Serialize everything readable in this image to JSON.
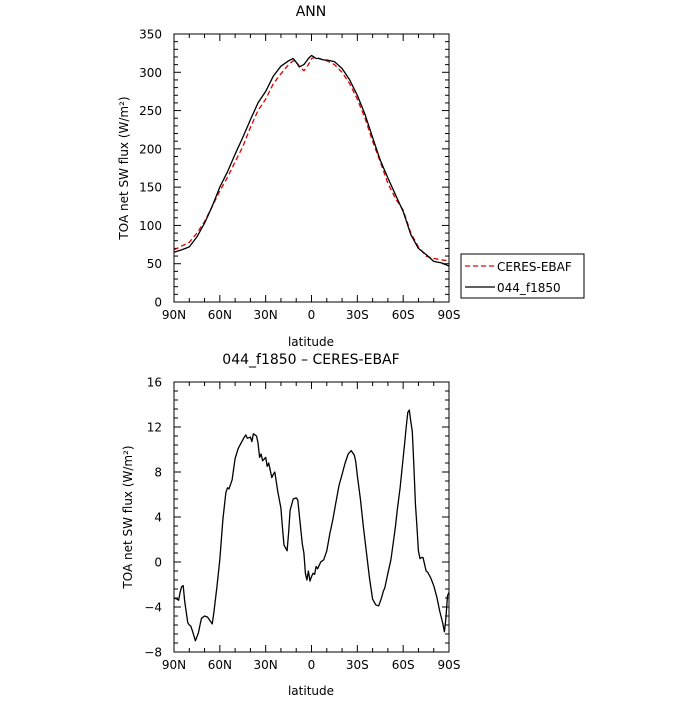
{
  "chart_data": [
    {
      "type": "line",
      "title": "ANN",
      "xlabel": "latitude",
      "ylabel": "TOA net SW flux (W/m²)",
      "xlim": [
        -90,
        90
      ],
      "ylim": [
        0,
        350
      ],
      "xticks": [
        -90,
        -60,
        -30,
        0,
        30,
        60,
        90
      ],
      "xtick_labels": [
        "90N",
        "60N",
        "30N",
        "0",
        "30S",
        "60S",
        "90S"
      ],
      "yticks": [
        0,
        50,
        100,
        150,
        200,
        250,
        300,
        350
      ],
      "ytick_labels": [
        "0",
        "50",
        "100",
        "150",
        "200",
        "250",
        "300",
        "350"
      ],
      "legend": "right",
      "series": [
        {
          "name": "CERES-EBAF",
          "color": "#e00000",
          "dash": "dashed",
          "x": [
            -90,
            -85,
            -80,
            -75,
            -70,
            -65,
            -60,
            -55,
            -50,
            -45,
            -40,
            -35,
            -30,
            -25,
            -20,
            -15,
            -12,
            -10,
            -8,
            -5,
            -2,
            0,
            3,
            5,
            8,
            10,
            15,
            20,
            25,
            30,
            35,
            40,
            45,
            50,
            55,
            60,
            65,
            70,
            75,
            80,
            85,
            90
          ],
          "y": [
            68,
            73,
            78,
            90,
            105,
            125,
            145,
            163,
            183,
            203,
            228,
            250,
            265,
            285,
            298,
            310,
            315,
            314,
            308,
            302,
            310,
            318,
            320,
            318,
            316,
            315,
            310,
            300,
            285,
            265,
            240,
            210,
            183,
            155,
            135,
            120,
            90,
            72,
            60,
            57,
            55,
            54
          ]
        },
        {
          "name": "044_f1850",
          "color": "#000000",
          "dash": "solid",
          "x": [
            -90,
            -85,
            -80,
            -75,
            -70,
            -65,
            -60,
            -55,
            -50,
            -45,
            -40,
            -35,
            -30,
            -25,
            -20,
            -15,
            -12,
            -10,
            -8,
            -5,
            -2,
            0,
            3,
            5,
            8,
            10,
            15,
            20,
            25,
            30,
            35,
            40,
            45,
            50,
            55,
            60,
            65,
            70,
            75,
            80,
            85,
            90
          ],
          "y": [
            65,
            68,
            72,
            85,
            103,
            125,
            150,
            170,
            193,
            215,
            238,
            260,
            275,
            295,
            308,
            315,
            318,
            313,
            307,
            310,
            318,
            322,
            318,
            318,
            316,
            316,
            314,
            305,
            290,
            270,
            245,
            215,
            185,
            162,
            140,
            118,
            88,
            70,
            62,
            53,
            51,
            47
          ]
        }
      ]
    },
    {
      "type": "line",
      "title": "044_f1850 – CERES-EBAF",
      "xlabel": "latitude",
      "ylabel": "TOA net SW flux (W/m²)",
      "xlim": [
        -90,
        90
      ],
      "ylim": [
        -8,
        16
      ],
      "xticks": [
        -90,
        -60,
        -30,
        0,
        30,
        60,
        90
      ],
      "xtick_labels": [
        "90N",
        "60N",
        "30N",
        "0",
        "30S",
        "60S",
        "90S"
      ],
      "yticks": [
        -8,
        -4,
        0,
        4,
        8,
        12,
        16
      ],
      "ytick_labels": [
        "−8",
        "−4",
        "0",
        "4",
        "8",
        "12",
        "16"
      ],
      "series": [
        {
          "color": "#000000",
          "dash": "solid",
          "x": [
            -90,
            -88,
            -87,
            -86,
            -85,
            -84,
            -83,
            -81,
            -80,
            -79,
            -78,
            -76,
            -74,
            -73,
            -72,
            -70,
            -68,
            -67,
            -65,
            -64,
            -62,
            -60,
            -58,
            -56,
            -55,
            -54,
            -52,
            -50,
            -48,
            -46,
            -44,
            -43,
            -42,
            -40,
            -39,
            -38,
            -36,
            -35,
            -34,
            -33,
            -32,
            -30,
            -29,
            -28,
            -26,
            -25,
            -24,
            -22,
            -20,
            -19,
            -18,
            -16,
            -15,
            -14,
            -12,
            -10,
            -9,
            -8,
            -6,
            -5,
            -4,
            -3,
            -2,
            -1,
            0,
            1,
            2,
            3,
            4,
            6,
            8,
            10,
            12,
            14,
            16,
            18,
            20,
            22,
            24,
            26,
            28,
            29,
            30,
            32,
            34,
            36,
            38,
            40,
            42,
            44,
            46,
            47,
            48,
            50,
            52,
            54,
            55,
            56,
            58,
            60,
            61,
            62,
            63,
            64,
            65,
            66,
            67,
            68,
            69,
            70,
            71,
            72,
            73,
            74,
            75,
            76,
            78,
            80,
            82,
            84,
            86,
            87,
            88,
            89,
            90
          ],
          "y": [
            -3.2,
            -3.3,
            -3.4,
            -2.7,
            -2.2,
            -2.1,
            -3.5,
            -5.4,
            -5.6,
            -5.7,
            -6.1,
            -7.0,
            -6.3,
            -5.6,
            -5.0,
            -4.8,
            -4.9,
            -5.1,
            -5.5,
            -4.6,
            -2.3,
            0.2,
            3.8,
            6.2,
            6.6,
            6.5,
            7.3,
            9.2,
            10.1,
            10.6,
            11.1,
            11.3,
            11.0,
            11.1,
            10.7,
            11.4,
            11.2,
            10.6,
            9.3,
            9.6,
            9.0,
            9.3,
            8.5,
            8.8,
            7.5,
            7.8,
            8.0,
            6.2,
            4.8,
            3.0,
            1.5,
            1.0,
            2.6,
            4.6,
            5.6,
            5.7,
            5.5,
            4.2,
            1.6,
            0.8,
            -1.0,
            -1.6,
            -0.8,
            -1.7,
            -1.3,
            -1.0,
            -1.1,
            -0.4,
            -0.6,
            0.0,
            0.2,
            1.0,
            2.5,
            3.8,
            5.3,
            6.8,
            7.8,
            8.8,
            9.6,
            9.9,
            9.5,
            8.9,
            7.7,
            5.6,
            3.1,
            0.8,
            -1.5,
            -3.3,
            -3.8,
            -3.9,
            -3.1,
            -2.6,
            -2.3,
            -1.0,
            0.2,
            2.2,
            3.2,
            4.5,
            6.6,
            9.3,
            10.6,
            12.0,
            13.3,
            13.5,
            12.5,
            11.6,
            8.5,
            5.2,
            3.2,
            1.0,
            0.3,
            0.4,
            0.4,
            -0.2,
            -0.8,
            -0.9,
            -1.4,
            -2.1,
            -3.1,
            -4.4,
            -5.5,
            -6.2,
            -5.0,
            -3.0,
            -2.7
          ]
        }
      ]
    }
  ]
}
